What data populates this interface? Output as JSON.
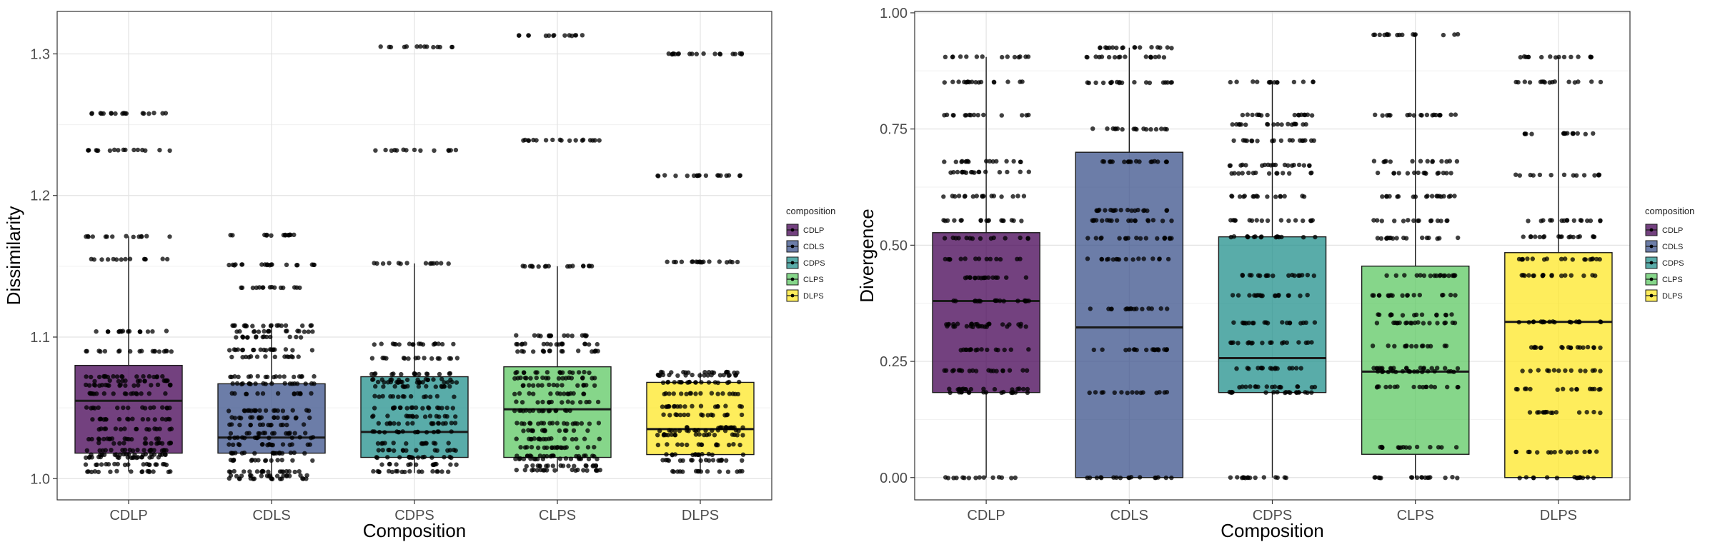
{
  "chart_data": [
    {
      "type": "box",
      "xlabel": "Composition",
      "ylabel": "Dissimilarity",
      "ylim": [
        0.985,
        1.33
      ],
      "yticks": [
        1.0,
        1.1,
        1.2,
        1.3
      ],
      "ytick_labels": [
        "1.0",
        "1.1",
        "1.2",
        "1.3"
      ],
      "categories": [
        "CDLP",
        "CDLS",
        "CDPS",
        "CLPS",
        "DLPS"
      ],
      "colors": [
        "#440154",
        "#3B528B",
        "#21908C",
        "#5DC863",
        "#FDE725"
      ],
      "grid": true,
      "legend": {
        "title": "composition",
        "placement": "right"
      },
      "boxes": [
        {
          "category": "CDLP",
          "q1": 1.018,
          "median": 1.055,
          "q3": 1.08,
          "whisker_low": 1.005,
          "whisker_high": 1.171
        },
        {
          "category": "CDLS",
          "q1": 1.018,
          "median": 1.029,
          "q3": 1.067,
          "whisker_low": 1.0,
          "whisker_high": 1.107
        },
        {
          "category": "CDPS",
          "q1": 1.015,
          "median": 1.033,
          "q3": 1.072,
          "whisker_low": 1.004,
          "whisker_high": 1.152
        },
        {
          "category": "CLPS",
          "q1": 1.015,
          "median": 1.049,
          "q3": 1.079,
          "whisker_low": 1.005,
          "whisker_high": 1.15
        },
        {
          "category": "DLPS",
          "q1": 1.017,
          "median": 1.035,
          "q3": 1.068,
          "whisker_low": 1.005,
          "whisker_high": 1.075
        }
      ],
      "points": [
        {
          "category": "CDLP",
          "values": [
            1.258,
            1.232,
            1.171,
            1.155,
            1.104,
            1.09,
            1.072,
            1.069,
            1.066,
            1.06,
            1.05,
            1.042,
            1.035,
            1.028,
            1.025,
            1.02,
            1.017,
            1.015,
            1.01,
            1.005
          ]
        },
        {
          "category": "CDLS",
          "values": [
            1.172,
            1.151,
            1.135,
            1.108,
            1.104,
            1.1,
            1.091,
            1.086,
            1.072,
            1.067,
            1.06,
            1.048,
            1.043,
            1.038,
            1.032,
            1.029,
            1.024,
            1.018,
            1.013,
            1.005,
            1.002,
            1.0
          ]
        },
        {
          "category": "CDPS",
          "values": [
            1.305,
            1.232,
            1.152,
            1.095,
            1.085,
            1.074,
            1.07,
            1.068,
            1.065,
            1.058,
            1.05,
            1.044,
            1.039,
            1.033,
            1.025,
            1.02,
            1.015,
            1.01,
            1.005
          ]
        },
        {
          "category": "CLPS",
          "values": [
            1.313,
            1.239,
            1.15,
            1.101,
            1.095,
            1.09,
            1.075,
            1.071,
            1.066,
            1.06,
            1.054,
            1.048,
            1.039,
            1.034,
            1.028,
            1.022,
            1.016,
            1.014,
            1.009,
            1.006
          ]
        },
        {
          "category": "DLPS",
          "values": [
            1.3,
            1.214,
            1.153,
            1.075,
            1.073,
            1.068,
            1.06,
            1.051,
            1.045,
            1.036,
            1.034,
            1.031,
            1.024,
            1.017,
            1.013,
            1.005
          ]
        }
      ]
    },
    {
      "type": "box",
      "xlabel": "Composition",
      "ylabel": "Divergence",
      "ylim": [
        -0.048,
        1.003
      ],
      "yticks": [
        0.0,
        0.25,
        0.5,
        0.75,
        1.0
      ],
      "ytick_labels": [
        "0.00",
        "0.25",
        "0.50",
        "0.75",
        "1.00"
      ],
      "categories": [
        "CDLP",
        "CDLS",
        "CDPS",
        "CLPS",
        "DLPS"
      ],
      "colors": [
        "#440154",
        "#3B528B",
        "#21908C",
        "#5DC863",
        "#FDE725"
      ],
      "grid": true,
      "legend": {
        "title": "composition",
        "placement": "right"
      },
      "boxes": [
        {
          "category": "CDLP",
          "q1": 0.183,
          "median": 0.38,
          "q3": 0.527,
          "whisker_low": 0.0,
          "whisker_high": 0.905
        },
        {
          "category": "CDLS",
          "q1": 0.0,
          "median": 0.323,
          "q3": 0.7,
          "whisker_low": 0.0,
          "whisker_high": 0.925
        },
        {
          "category": "CDPS",
          "q1": 0.183,
          "median": 0.257,
          "q3": 0.518,
          "whisker_low": 0.0,
          "whisker_high": 0.851
        },
        {
          "category": "CLPS",
          "q1": 0.05,
          "median": 0.228,
          "q3": 0.455,
          "whisker_low": 0.0,
          "whisker_high": 0.953
        },
        {
          "category": "DLPS",
          "q1": 0.0,
          "median": 0.335,
          "q3": 0.484,
          "whisker_low": 0.0,
          "whisker_high": 0.905
        }
      ],
      "points": [
        {
          "category": "CDLP",
          "values": [
            0.905,
            0.851,
            0.78,
            0.68,
            0.657,
            0.605,
            0.553,
            0.515,
            0.47,
            0.43,
            0.38,
            0.33,
            0.325,
            0.275,
            0.23,
            0.19,
            0.183,
            0.0
          ]
        },
        {
          "category": "CDLS",
          "values": [
            0.925,
            0.905,
            0.85,
            0.75,
            0.68,
            0.575,
            0.553,
            0.515,
            0.47,
            0.363,
            0.275,
            0.183,
            0.0
          ]
        },
        {
          "category": "CDPS",
          "values": [
            0.851,
            0.78,
            0.76,
            0.725,
            0.672,
            0.655,
            0.605,
            0.553,
            0.518,
            0.435,
            0.392,
            0.333,
            0.29,
            0.235,
            0.195,
            0.183,
            0.0
          ]
        },
        {
          "category": "CLPS",
          "values": [
            0.953,
            0.78,
            0.68,
            0.655,
            0.605,
            0.553,
            0.515,
            0.435,
            0.392,
            0.35,
            0.333,
            0.283,
            0.235,
            0.228,
            0.195,
            0.065,
            0.0
          ]
        },
        {
          "category": "DLPS",
          "values": [
            0.905,
            0.851,
            0.74,
            0.651,
            0.553,
            0.518,
            0.47,
            0.435,
            0.335,
            0.28,
            0.23,
            0.19,
            0.14,
            0.055,
            0.0
          ]
        }
      ]
    }
  ]
}
